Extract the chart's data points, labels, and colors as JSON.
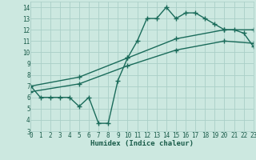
{
  "line1_x": [
    0,
    1,
    2,
    3,
    4,
    5,
    6,
    7,
    8,
    9,
    10,
    11,
    12,
    13,
    14,
    15,
    16,
    17,
    18,
    19,
    20,
    21,
    22,
    23
  ],
  "line1_y": [
    7.0,
    6.0,
    6.0,
    6.0,
    6.0,
    5.2,
    6.0,
    3.7,
    3.7,
    7.5,
    9.5,
    11.0,
    13.0,
    13.0,
    14.0,
    13.0,
    13.5,
    13.5,
    13.0,
    12.5,
    12.0,
    12.0,
    11.7,
    10.5
  ],
  "line2_x": [
    0,
    5,
    10,
    15,
    20,
    23
  ],
  "line2_y": [
    7.0,
    7.8,
    9.5,
    11.2,
    12.0,
    12.0
  ],
  "line3_x": [
    0,
    5,
    10,
    15,
    20,
    23
  ],
  "line3_y": [
    6.5,
    7.2,
    8.8,
    10.2,
    11.0,
    10.8
  ],
  "line_color": "#1a6b5a",
  "bg_color": "#cce8e0",
  "grid_color": "#aacfc8",
  "xlabel": "Humidex (Indice chaleur)",
  "xlim": [
    0,
    23
  ],
  "ylim": [
    3,
    14.5
  ],
  "yticks": [
    3,
    4,
    5,
    6,
    7,
    8,
    9,
    10,
    11,
    12,
    13,
    14
  ],
  "xticks": [
    0,
    1,
    2,
    3,
    4,
    5,
    6,
    7,
    8,
    9,
    10,
    11,
    12,
    13,
    14,
    15,
    16,
    17,
    18,
    19,
    20,
    21,
    22,
    23
  ],
  "marker": "+",
  "markersize": 4,
  "linewidth": 1.0,
  "font_color": "#1a5c4a",
  "tick_fontsize": 5.5,
  "xlabel_fontsize": 6.5
}
